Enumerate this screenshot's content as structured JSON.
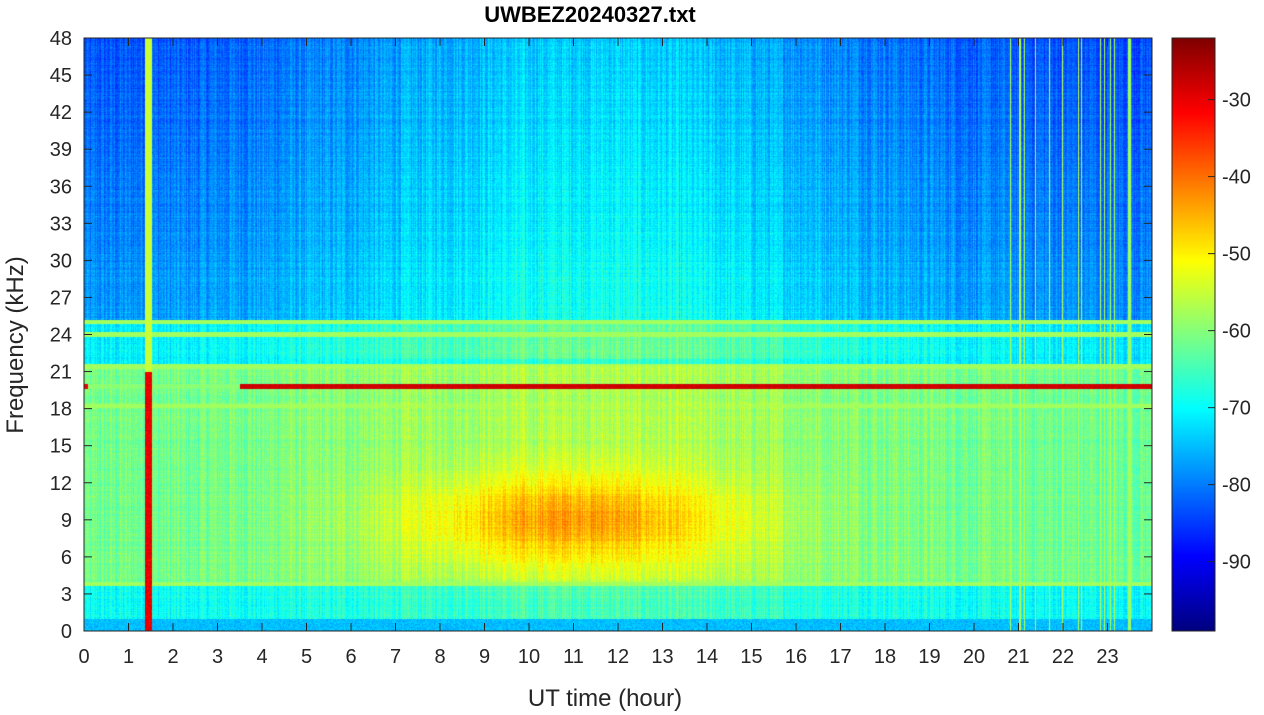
{
  "chart_data": {
    "type": "heatmap",
    "title": "UWBEZ20240327.txt",
    "xlabel": "UT time (hour)",
    "ylabel": "Frequency (kHz)",
    "xlim": [
      0,
      24
    ],
    "ylim": [
      0,
      48
    ],
    "x_ticks": [
      "0",
      "1",
      "2",
      "3",
      "4",
      "5",
      "6",
      "7",
      "8",
      "9",
      "10",
      "11",
      "12",
      "13",
      "14",
      "15",
      "16",
      "17",
      "18",
      "19",
      "20",
      "21",
      "22",
      "23"
    ],
    "y_ticks": [
      "0",
      "3",
      "6",
      "9",
      "12",
      "15",
      "18",
      "21",
      "24",
      "27",
      "30",
      "33",
      "36",
      "39",
      "42",
      "45",
      "48"
    ],
    "colormap": "jet",
    "colorbar": {
      "range": [
        -99,
        -22
      ],
      "ticks": [
        "-30",
        "-40",
        "-50",
        "-60",
        "-70",
        "-80",
        "-90"
      ]
    },
    "description_features": {
      "constant_lines_khz": [
        19.8,
        18.2,
        21.4,
        24.0,
        25.0,
        3.8
      ],
      "strong_line_khz": 19.8,
      "strong_line_start_hour": 3.5,
      "broadband_event_hour": 1.45,
      "late_event_hour": 23.5,
      "noise_peak_hours": [
        8.5,
        13.5
      ],
      "noise_peak_freq_khz": [
        5,
        12
      ]
    }
  },
  "colors": {
    "jet_low": "#00007f",
    "jet_high": "#7f0000",
    "axis": "#262626"
  }
}
